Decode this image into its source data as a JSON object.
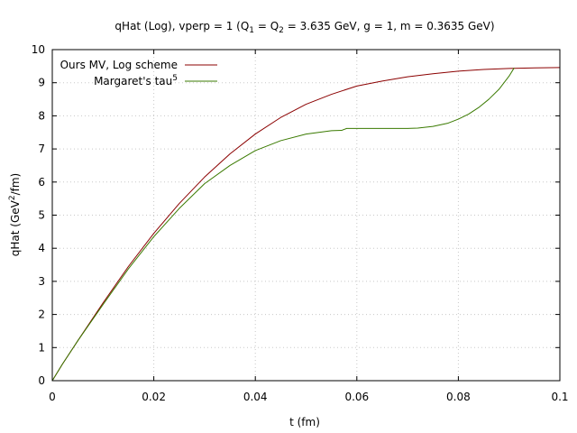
{
  "chart_data": {
    "type": "line",
    "title": "qHat (Log), vperp = 1 (Q₁ = Q₂ = 3.635 GeV, g = 1, m = 0.3635 GeV)",
    "title_parts": [
      {
        "t": "qHat (Log), vperp = 1 (Q"
      },
      {
        "t": "1",
        "sub": true
      },
      {
        "t": " = Q"
      },
      {
        "t": "2",
        "sub": true
      },
      {
        "t": " = 3.635 GeV, g = 1, m = 0.3635 GeV)"
      }
    ],
    "xlabel": "t (fm)",
    "ylabel": "qHat (GeV²/fm)",
    "ylabel_parts": [
      {
        "t": "qHat (GeV"
      },
      {
        "t": "2",
        "sup": true
      },
      {
        "t": "/fm)"
      }
    ],
    "xlim": [
      0,
      0.1
    ],
    "ylim": [
      0,
      10
    ],
    "xticks": [
      0,
      0.02,
      0.04,
      0.06,
      0.08,
      0.1
    ],
    "xtick_labels": [
      "0",
      "0.02",
      "0.04",
      "0.06",
      "0.08",
      "0.1"
    ],
    "yticks": [
      0,
      1,
      2,
      3,
      4,
      5,
      6,
      7,
      8,
      9,
      10
    ],
    "ytick_labels": [
      "0",
      "1",
      "2",
      "3",
      "4",
      "5",
      "6",
      "7",
      "8",
      "9",
      "10"
    ],
    "grid": true,
    "legend_position": "top-left",
    "series": [
      {
        "name": "Ours MV, Log scheme",
        "name_parts": [
          {
            "t": "Ours MV, Log scheme"
          }
        ],
        "color": "#8b0000",
        "x": [
          0,
          0.002,
          0.005,
          0.01,
          0.015,
          0.02,
          0.025,
          0.03,
          0.035,
          0.04,
          0.045,
          0.05,
          0.055,
          0.06,
          0.065,
          0.07,
          0.075,
          0.08,
          0.085,
          0.09,
          0.095,
          0.1
        ],
        "y": [
          0,
          0.5,
          1.2,
          2.35,
          3.45,
          4.45,
          5.35,
          6.15,
          6.85,
          7.45,
          7.95,
          8.35,
          8.65,
          8.9,
          9.05,
          9.18,
          9.27,
          9.35,
          9.4,
          9.43,
          9.45,
          9.46
        ]
      },
      {
        "name": "Margaret's tau⁵",
        "name_parts": [
          {
            "t": "Margaret's tau"
          },
          {
            "t": "5",
            "sup": true
          }
        ],
        "color": "#3a7a00",
        "x": [
          0,
          0.002,
          0.005,
          0.01,
          0.015,
          0.02,
          0.025,
          0.03,
          0.035,
          0.04,
          0.045,
          0.05,
          0.055,
          0.057,
          0.058,
          0.06,
          0.065,
          0.07,
          0.072,
          0.075,
          0.078,
          0.08,
          0.082,
          0.084,
          0.086,
          0.088,
          0.09,
          0.091
        ],
        "y": [
          0,
          0.5,
          1.2,
          2.3,
          3.38,
          4.35,
          5.2,
          5.95,
          6.5,
          6.95,
          7.25,
          7.45,
          7.55,
          7.56,
          7.62,
          7.62,
          7.62,
          7.62,
          7.63,
          7.68,
          7.78,
          7.9,
          8.05,
          8.25,
          8.5,
          8.8,
          9.2,
          9.45
        ]
      }
    ]
  }
}
